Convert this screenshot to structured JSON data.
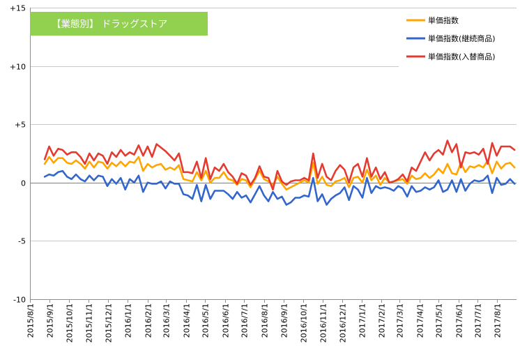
{
  "chart_data": {
    "type": "line",
    "title": "【業態別】 ドラッグストア",
    "title_box_color": "#92D050",
    "ylim": [
      -10,
      15
    ],
    "yticks": [
      -10,
      -5,
      0,
      5,
      10,
      15
    ],
    "ytick_labels": [
      "-10",
      "-5",
      "0",
      "+5",
      "+10",
      "+15"
    ],
    "xlim": [
      "2015-08-01",
      "2017-08-31"
    ],
    "xtick_labels": [
      "2015/8/1",
      "2015/9/1",
      "2015/10/1",
      "2015/11/1",
      "2015/12/1",
      "2016/1/1",
      "2016/2/1",
      "2016/3/1",
      "2016/4/1",
      "2016/5/1",
      "2016/6/1",
      "2016/7/1",
      "2016/8/1",
      "2016/9/1",
      "2016/10/1",
      "2016/11/1",
      "2016/12/1",
      "2017/1/1",
      "2017/2/1",
      "2017/3/1",
      "2017/4/1",
      "2017/5/1",
      "2017/6/1",
      "2017/7/1",
      "2017/8/1"
    ],
    "xtick_dates": [
      "2015-08-01",
      "2015-09-01",
      "2015-10-01",
      "2015-11-01",
      "2015-12-01",
      "2016-01-01",
      "2016-02-01",
      "2016-03-01",
      "2016-04-01",
      "2016-05-01",
      "2016-06-01",
      "2016-07-01",
      "2016-08-01",
      "2016-09-01",
      "2016-10-01",
      "2016-11-01",
      "2016-12-01",
      "2017-01-01",
      "2017-02-01",
      "2017-03-01",
      "2017-04-01",
      "2017-05-01",
      "2017-06-01",
      "2017-07-01",
      "2017-08-01"
    ],
    "legend_position": "top-right",
    "grid": "horizontal",
    "x": [
      "2015-08-24",
      "2015-08-31",
      "2015-09-07",
      "2015-09-14",
      "2015-09-21",
      "2015-09-28",
      "2015-10-05",
      "2015-10-12",
      "2015-10-19",
      "2015-10-26",
      "2015-11-02",
      "2015-11-09",
      "2015-11-16",
      "2015-11-23",
      "2015-11-30",
      "2015-12-07",
      "2015-12-14",
      "2015-12-21",
      "2015-12-28",
      "2016-01-04",
      "2016-01-11",
      "2016-01-18",
      "2016-01-25",
      "2016-02-01",
      "2016-02-08",
      "2016-02-15",
      "2016-02-22",
      "2016-02-29",
      "2016-03-07",
      "2016-03-14",
      "2016-03-21",
      "2016-03-28",
      "2016-04-04",
      "2016-04-11",
      "2016-04-18",
      "2016-04-25",
      "2016-05-02",
      "2016-05-09",
      "2016-05-16",
      "2016-05-23",
      "2016-05-30",
      "2016-06-06",
      "2016-06-13",
      "2016-06-20",
      "2016-06-27",
      "2016-07-04",
      "2016-07-11",
      "2016-07-18",
      "2016-07-25",
      "2016-08-01",
      "2016-08-08",
      "2016-08-15",
      "2016-08-22",
      "2016-08-29",
      "2016-09-05",
      "2016-09-12",
      "2016-09-19",
      "2016-09-26",
      "2016-10-03",
      "2016-10-10",
      "2016-10-17",
      "2016-10-24",
      "2016-10-31",
      "2016-11-07",
      "2016-11-14",
      "2016-11-21",
      "2016-11-28",
      "2016-12-05",
      "2016-12-12",
      "2016-12-19",
      "2016-12-26",
      "2017-01-02",
      "2017-01-09",
      "2017-01-16",
      "2017-01-23",
      "2017-01-30",
      "2017-02-06",
      "2017-02-13",
      "2017-02-20",
      "2017-02-27",
      "2017-03-06",
      "2017-03-13",
      "2017-03-20",
      "2017-03-27",
      "2017-04-03",
      "2017-04-10",
      "2017-04-17",
      "2017-04-24",
      "2017-05-01",
      "2017-05-08",
      "2017-05-15",
      "2017-05-22",
      "2017-05-29",
      "2017-06-05",
      "2017-06-12",
      "2017-06-19",
      "2017-06-26",
      "2017-07-03",
      "2017-07-10",
      "2017-07-17",
      "2017-07-24",
      "2017-07-31",
      "2017-08-07",
      "2017-08-14",
      "2017-08-21",
      "2017-08-28"
    ],
    "series": [
      {
        "name": "単価指数",
        "color": "#FFA500",
        "values": [
          1.6,
          2.2,
          1.7,
          2.1,
          2.1,
          1.7,
          1.6,
          1.9,
          1.6,
          1.2,
          1.8,
          1.3,
          1.8,
          1.7,
          1.2,
          1.7,
          1.4,
          1.8,
          1.4,
          1.8,
          1.7,
          2.2,
          1.0,
          1.6,
          1.3,
          1.5,
          1.6,
          1.1,
          1.3,
          1.1,
          1.5,
          0.3,
          0.2,
          0.1,
          0.9,
          0.2,
          1.0,
          0.0,
          0.4,
          0.4,
          0.9,
          0.3,
          0.2,
          -0.2,
          0.3,
          0.2,
          -0.4,
          0.3,
          1.0,
          0.3,
          0.1,
          -0.2,
          0.5,
          -0.1,
          -0.6,
          -0.4,
          -0.2,
          0.0,
          0.2,
          0.0,
          1.7,
          -0.1,
          0.5,
          -0.2,
          -0.3,
          0.1,
          0.2,
          0.4,
          -0.4,
          0.4,
          0.5,
          0.0,
          1.1,
          0.2,
          0.6,
          -0.2,
          0.4,
          0.0,
          0.1,
          0.2,
          0.3,
          -0.1,
          0.6,
          0.3,
          0.4,
          0.8,
          0.4,
          0.7,
          1.2,
          0.8,
          1.6,
          0.8,
          0.7,
          1.7,
          0.9,
          1.4,
          1.3,
          1.5,
          1.3,
          1.9,
          0.8,
          1.8,
          1.2,
          1.6,
          1.7,
          1.3
        ]
      },
      {
        "name": "単価指数(継続商品)",
        "color": "#3366CC",
        "values": [
          0.5,
          0.7,
          0.6,
          0.9,
          1.0,
          0.5,
          0.3,
          0.7,
          0.3,
          0.1,
          0.6,
          0.2,
          0.6,
          0.5,
          -0.3,
          0.3,
          -0.1,
          0.4,
          -0.6,
          0.3,
          0.0,
          0.6,
          -0.8,
          0.0,
          -0.1,
          -0.1,
          0.1,
          -0.5,
          0.1,
          -0.1,
          -0.1,
          -1.0,
          -1.1,
          -1.4,
          -0.2,
          -1.6,
          -0.2,
          -1.4,
          -0.7,
          -0.7,
          -0.7,
          -1.0,
          -1.4,
          -0.8,
          -1.3,
          -1.1,
          -1.7,
          -1.0,
          -0.3,
          -1.1,
          -1.6,
          -0.8,
          -1.4,
          -1.2,
          -1.9,
          -1.7,
          -1.3,
          -1.3,
          -1.1,
          -1.2,
          0.4,
          -1.6,
          -1.0,
          -1.9,
          -1.4,
          -1.1,
          -0.9,
          -0.4,
          -1.5,
          -0.3,
          -0.6,
          -1.3,
          0.4,
          -0.9,
          -0.3,
          -0.5,
          -0.4,
          -0.5,
          -0.7,
          -0.3,
          -0.5,
          -1.2,
          -0.3,
          -0.8,
          -0.7,
          -0.4,
          -0.6,
          -0.4,
          0.2,
          -0.8,
          -0.6,
          0.2,
          -0.8,
          0.3,
          -0.7,
          -0.1,
          0.2,
          0.1,
          0.2,
          0.6,
          -0.9,
          0.4,
          -0.2,
          -0.1,
          0.3,
          -0.1
        ]
      },
      {
        "name": "単価指数(入替商品)",
        "color": "#E53A2F",
        "values": [
          2.0,
          3.1,
          2.3,
          2.9,
          2.8,
          2.4,
          2.6,
          2.6,
          2.2,
          1.6,
          2.5,
          1.9,
          2.5,
          2.3,
          1.6,
          2.6,
          2.2,
          2.8,
          2.3,
          2.6,
          2.4,
          3.2,
          2.3,
          3.1,
          2.2,
          3.3,
          3.0,
          2.7,
          2.3,
          1.9,
          2.5,
          0.9,
          0.9,
          0.8,
          1.8,
          0.4,
          2.1,
          0.3,
          1.3,
          1.0,
          1.6,
          0.9,
          0.5,
          -0.1,
          0.8,
          0.6,
          -0.2,
          0.4,
          1.4,
          0.5,
          0.4,
          -0.6,
          1.0,
          0.1,
          -0.2,
          0.1,
          0.2,
          0.2,
          0.4,
          0.2,
          2.5,
          0.4,
          1.6,
          0.5,
          0.2,
          1.0,
          1.5,
          1.1,
          0.0,
          1.3,
          1.6,
          0.5,
          2.1,
          0.5,
          1.3,
          0.3,
          0.9,
          0.0,
          0.1,
          0.3,
          0.7,
          0.1,
          1.3,
          1.0,
          1.8,
          2.6,
          1.9,
          2.5,
          2.8,
          2.4,
          3.6,
          2.6,
          3.3,
          1.3,
          2.6,
          2.5,
          2.6,
          2.4,
          2.9,
          1.6,
          3.4,
          2.3,
          3.1,
          3.1,
          3.1,
          2.8
        ]
      }
    ]
  }
}
